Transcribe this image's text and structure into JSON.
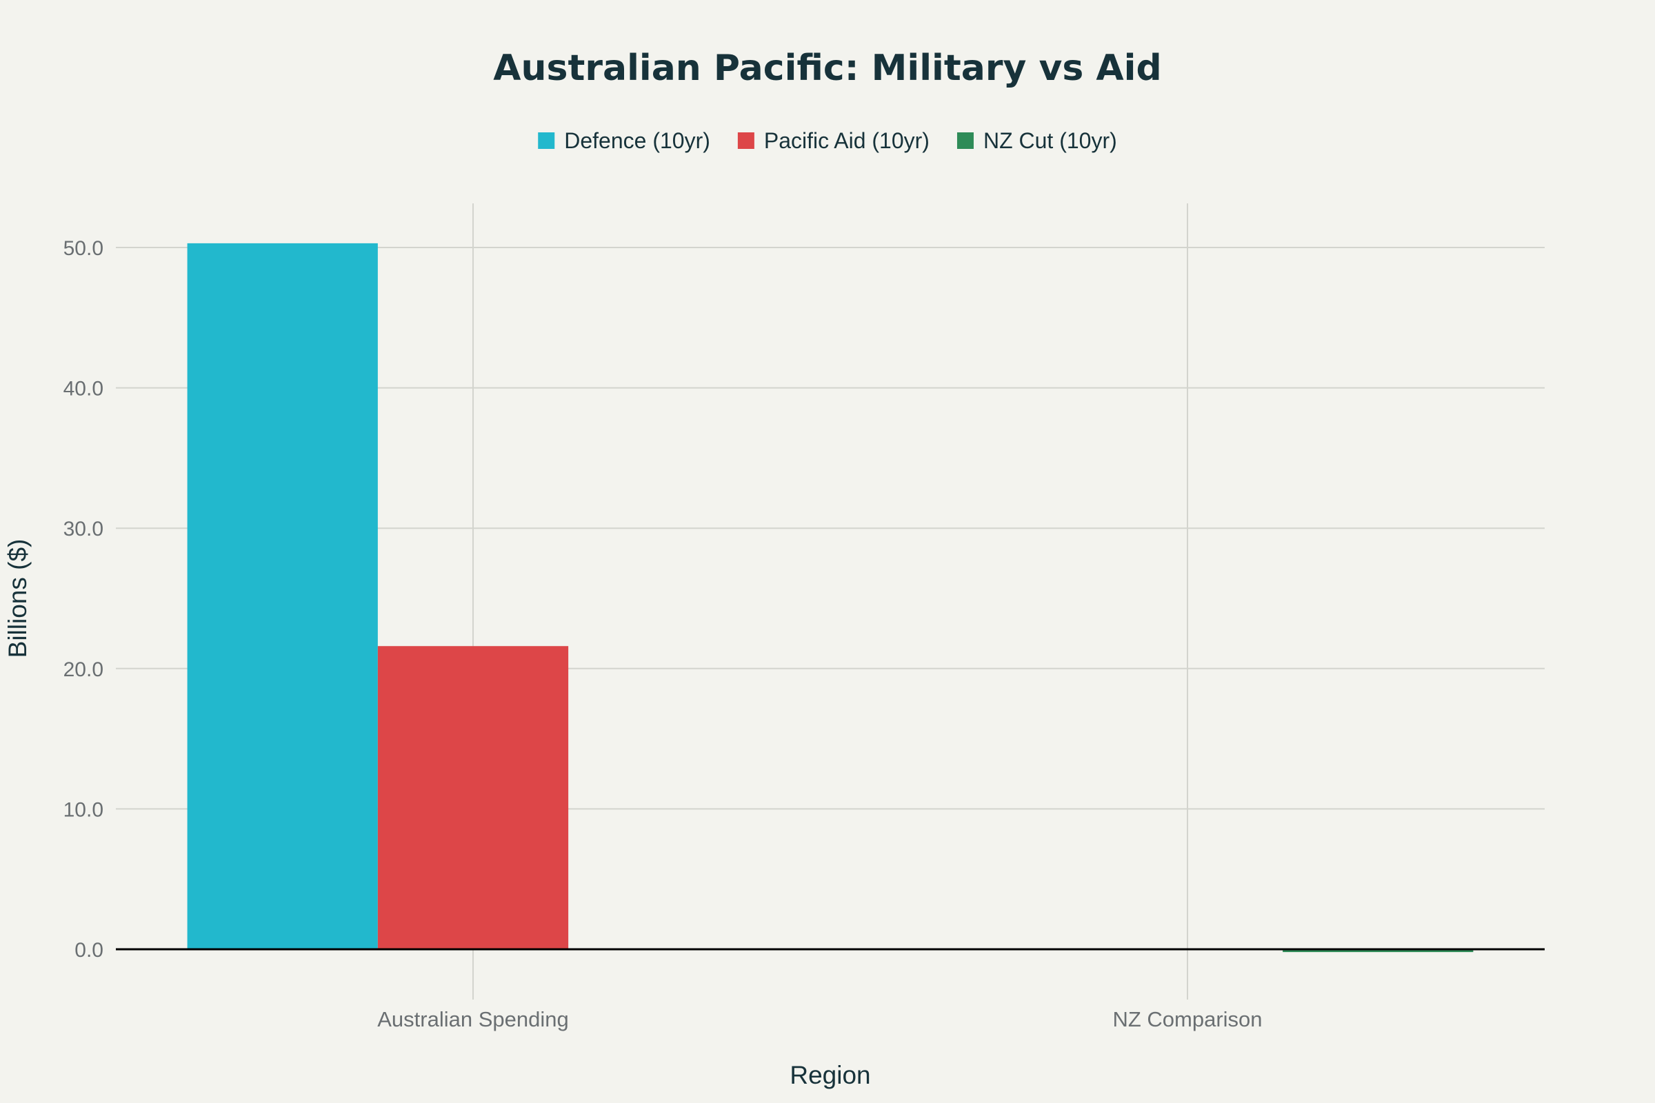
{
  "chart_data": {
    "type": "bar",
    "title": "Australian Pacific: Military vs Aid",
    "xlabel": "Region",
    "ylabel": "Billions ($)",
    "categories": [
      "Australian Spending",
      "NZ Comparison"
    ],
    "series": [
      {
        "name": "Defence (10yr)",
        "color": "#22b8cd",
        "values": [
          50.3,
          null
        ]
      },
      {
        "name": "Pacific Aid (10yr)",
        "color": "#dd4648",
        "values": [
          21.6,
          null
        ]
      },
      {
        "name": "NZ Cut (10yr)",
        "color": "#2e8b57",
        "values": [
          null,
          -0.2
        ]
      }
    ],
    "y_ticks": [
      "0.0",
      "10.0",
      "20.0",
      "30.0",
      "40.0",
      "50.0"
    ],
    "ylim": [
      -3.6,
      53
    ],
    "grid": true,
    "legend_position": "top-center"
  }
}
